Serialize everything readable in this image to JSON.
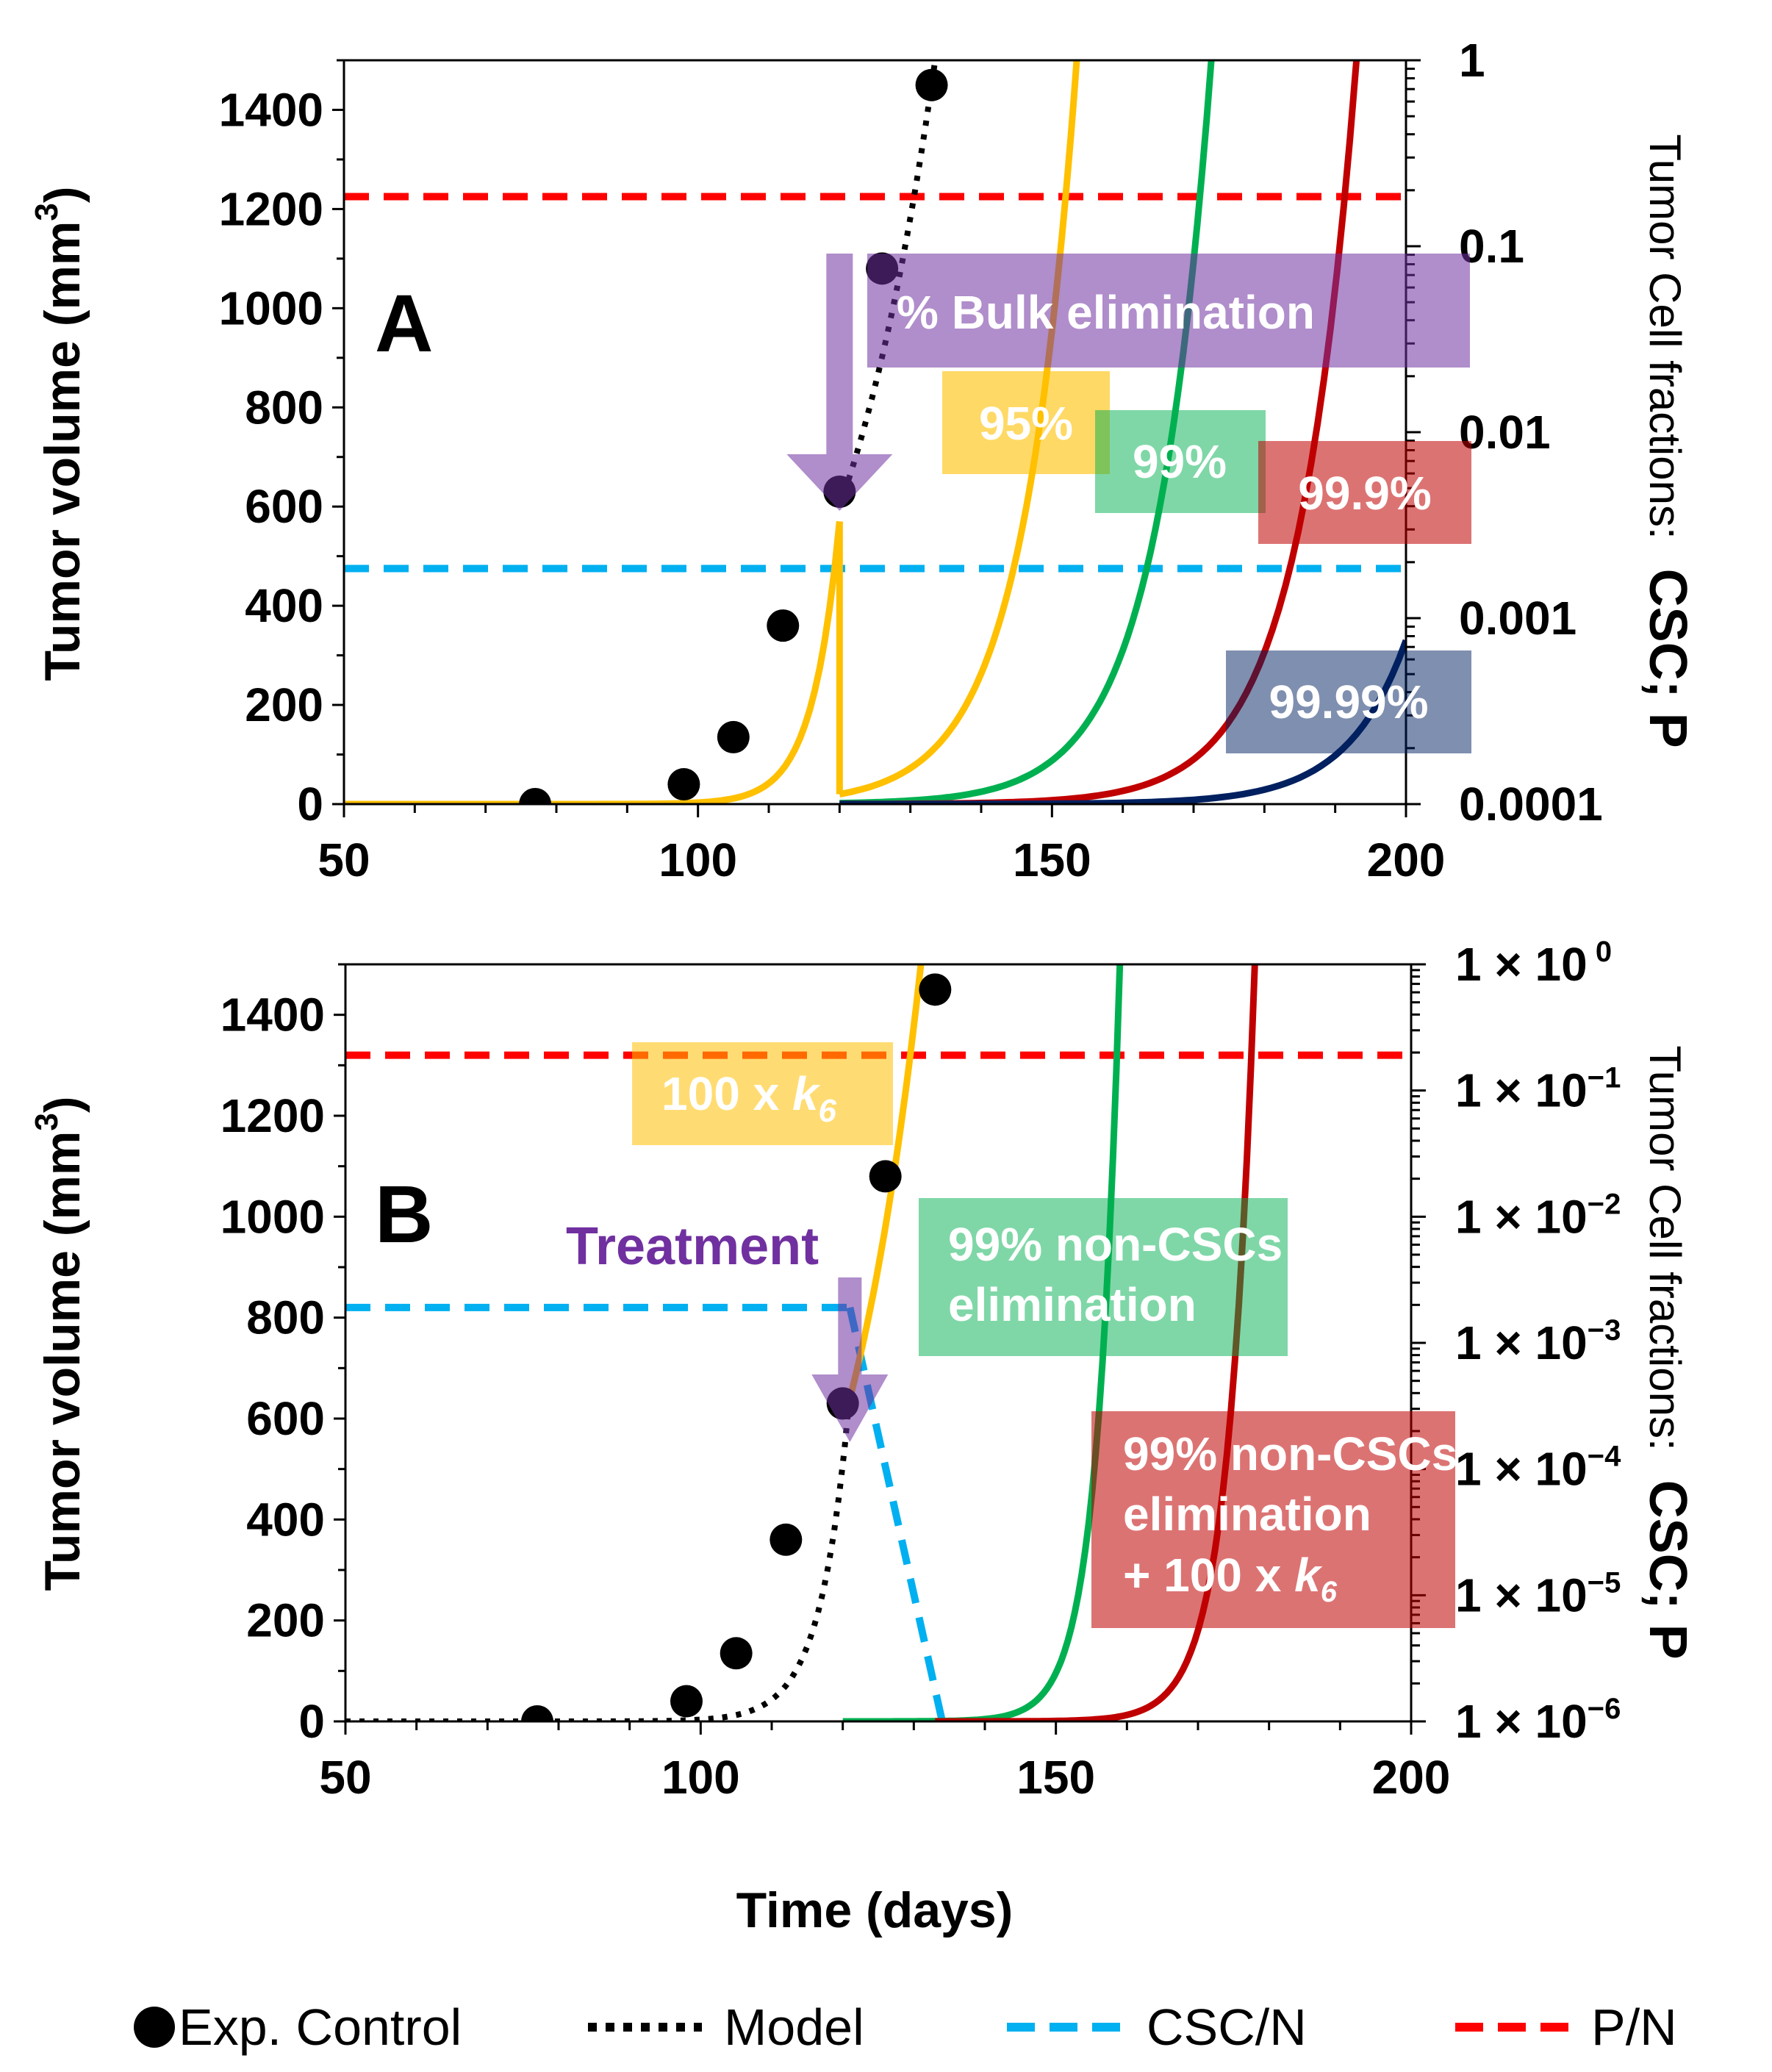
{
  "colors": {
    "data_point": "#000000",
    "model": "#000000",
    "csc": "#00b0f0",
    "p": "#ff0000",
    "orange": "#ffc000",
    "green": "#00b050",
    "darkred": "#c00000",
    "navy": "#002060",
    "purple": "#7030a0"
  },
  "xlabel": "Time (days)",
  "legend": [
    {
      "label": "Exp. Control",
      "marker": "dot"
    },
    {
      "label": "Model",
      "marker": "dotted"
    },
    {
      "label": "CSC/N",
      "marker": "dashed-blue"
    },
    {
      "label": "P/N",
      "marker": "dashed-red"
    }
  ],
  "chart_data": [
    {
      "panel": "A",
      "type": "line",
      "xlim": [
        50,
        200
      ],
      "ylim": [
        0,
        1500
      ],
      "xticks": [
        "50",
        "100",
        "150",
        "200"
      ],
      "yticks": [
        "0",
        "200",
        "400",
        "600",
        "800",
        "1000",
        "1200",
        "1400"
      ],
      "ylabel": "Tumor volume (mm3)",
      "ylabel_main": "Tumor volume (mm",
      "ylabel_sup": "3",
      "ylabel_close": ")",
      "y2label": "Tumor Cell fractions:",
      "y2label_bold": "CSC; P",
      "y2_log_range": [
        0.0001,
        1
      ],
      "y2ticks": [
        "0.0001",
        "0.001",
        "0.01",
        "0.1",
        "1"
      ],
      "exp_control": {
        "x": [
          77,
          98,
          105,
          112,
          120,
          126,
          133
        ],
        "y": [
          0,
          40,
          135,
          360,
          630,
          1080,
          1450
        ]
      },
      "model_dotted": {
        "x_range": [
          120,
          133
        ]
      },
      "csc_n_level": 475,
      "p_n_level": 1225,
      "treatment_day": 120,
      "curves": [
        {
          "name": "95%",
          "color": "orange",
          "start_day": 120,
          "start_y": 20,
          "end_day": 153.5,
          "end_y": 1500,
          "pre_treatment": true
        },
        {
          "name": "99%",
          "color": "green",
          "start_day": 120,
          "start_y": 2,
          "end_day": 172.5,
          "end_y": 1500
        },
        {
          "name": "99.9%",
          "color": "darkred",
          "start_day": 120,
          "start_y": 0.2,
          "end_day": 193,
          "end_y": 1500
        },
        {
          "name": "99.99%",
          "color": "navy",
          "start_day": 120,
          "start_y": 0.02,
          "end_day": 200,
          "end_y": 330
        }
      ],
      "labels": {
        "letter": "A",
        "bulk": "% Bulk elimination",
        "p95": "95%",
        "p99": "99%",
        "p999": "99.9%",
        "p9999": "99.99%"
      }
    },
    {
      "panel": "B",
      "type": "line",
      "xlim": [
        50,
        200
      ],
      "ylim": [
        0,
        1500
      ],
      "xticks": [
        "50",
        "100",
        "150",
        "200"
      ],
      "yticks": [
        "0",
        "200",
        "400",
        "600",
        "800",
        "1000",
        "1200",
        "1400"
      ],
      "ylabel": "Tumor volume (mm3)",
      "ylabel_main": "Tumor volume (mm",
      "ylabel_sup": "3",
      "ylabel_close": ")",
      "y2label": "Tumor Cell fractions:",
      "y2label_bold": "CSC; P",
      "y2_log_range": [
        1e-06,
        1
      ],
      "y2ticks": [
        {
          "base": "1 × 10",
          "exp": "−6"
        },
        {
          "base": "1 × 10",
          "exp": "−5"
        },
        {
          "base": "1 × 10",
          "exp": "−4"
        },
        {
          "base": "1 × 10",
          "exp": "−3"
        },
        {
          "base": "1 × 10",
          "exp": "−2"
        },
        {
          "base": "1 × 10",
          "exp": "−1"
        },
        {
          "base": "1 × 10",
          "exp": " 0"
        }
      ],
      "exp_control": {
        "x": [
          77,
          98,
          105,
          112,
          120,
          126,
          133
        ],
        "y": [
          0,
          40,
          135,
          360,
          630,
          1080,
          1450
        ]
      },
      "model_dotted": {
        "x_range": [
          50,
          121
        ]
      },
      "csc_n_level": 820,
      "csc_n_end_day": 121,
      "csc_drop_end_day": 134,
      "p_n_level": 1320,
      "treatment_day": 121,
      "curves": [
        {
          "name": "100 x k6",
          "color": "orange",
          "start_day": 121,
          "start_y": 640,
          "end_day": 131,
          "end_y": 1500
        },
        {
          "name": "99% non-CSCs elimination",
          "color": "green",
          "start_day": 120,
          "start_y": 0,
          "end_day": 159,
          "end_y": 1500
        },
        {
          "name": "99% non-CSCs elimination + 100 x k6",
          "color": "darkred",
          "start_day": 133,
          "start_y": 0,
          "end_day": 178,
          "end_y": 1500
        }
      ],
      "labels": {
        "letter": "B",
        "treatment": "Treatment",
        "k6_main": "100 x ",
        "k6_k": "k",
        "k6_sub": "6",
        "green_line1": "99% non-CSCs",
        "green_line2": "elimination",
        "red_line1": "99% non-CSCs",
        "red_line2": "elimination",
        "red_line3": "+ 100 x ",
        "red_k": "k",
        "red_sub": "6"
      }
    }
  ]
}
